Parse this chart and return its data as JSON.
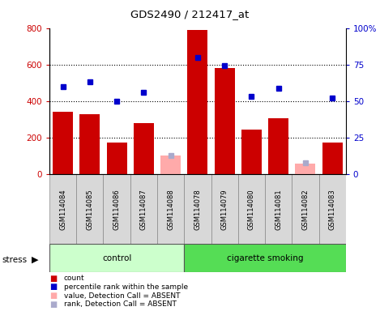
{
  "title": "GDS2490 / 212417_at",
  "samples": [
    "GSM114084",
    "GSM114085",
    "GSM114086",
    "GSM114087",
    "GSM114088",
    "GSM114078",
    "GSM114079",
    "GSM114080",
    "GSM114081",
    "GSM114082",
    "GSM114083"
  ],
  "counts": [
    340,
    330,
    175,
    280,
    10,
    790,
    580,
    245,
    305,
    5,
    175
  ],
  "ranks": [
    60,
    63,
    50,
    56,
    null,
    80,
    74,
    53,
    59,
    null,
    52
  ],
  "absent_values": [
    null,
    null,
    null,
    null,
    100,
    null,
    null,
    null,
    null,
    60,
    null
  ],
  "absent_ranks": [
    null,
    null,
    null,
    null,
    13,
    null,
    null,
    null,
    null,
    8,
    null
  ],
  "n_control": 5,
  "n_smoking": 6,
  "bar_color": "#cc0000",
  "rank_color": "#0000cc",
  "absent_val_color": "#ffaaaa",
  "absent_rank_color": "#aaaacc",
  "control_bg": "#ccffcc",
  "smoking_bg": "#55dd55",
  "label_bg": "#d8d8d8",
  "ylim_left": [
    0,
    800
  ],
  "ylim_right": [
    0,
    100
  ],
  "yticks_left": [
    0,
    200,
    400,
    600,
    800
  ],
  "yticks_right": [
    0,
    25,
    50,
    75,
    100
  ],
  "ytick_right_labels": [
    "0",
    "25",
    "50",
    "75",
    "100%"
  ],
  "gridlines": [
    200,
    400,
    600
  ],
  "ylabel_left_color": "#cc0000",
  "ylabel_right_color": "#0000cc",
  "legend_items": [
    [
      "#cc0000",
      "count"
    ],
    [
      "#0000cc",
      "percentile rank within the sample"
    ],
    [
      "#ffaaaa",
      "value, Detection Call = ABSENT"
    ],
    [
      "#aaaacc",
      "rank, Detection Call = ABSENT"
    ]
  ]
}
